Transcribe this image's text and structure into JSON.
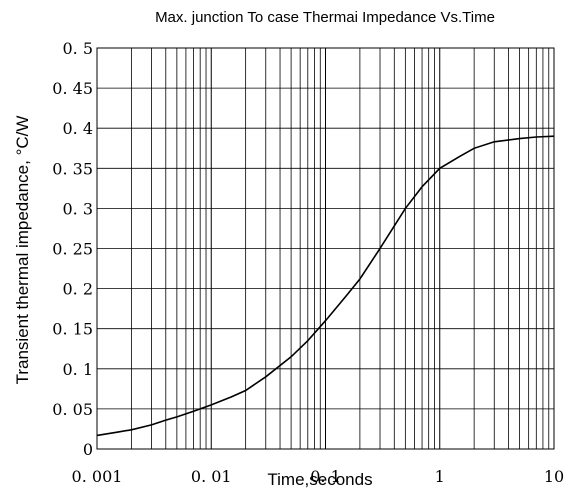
{
  "chart_data": {
    "type": "line",
    "title": "Max. junction To case Thermai Impedance Vs.Time",
    "xlabel": "Time,seconds",
    "ylabel": "Transient thermal impedance, °C/W",
    "x_scale": "log",
    "xlim": [
      0.001,
      10
    ],
    "ylim": [
      0,
      0.5
    ],
    "grid": true,
    "x_ticks": [
      {
        "value": 0.001,
        "label": "0. 001"
      },
      {
        "value": 0.01,
        "label": "0. 01"
      },
      {
        "value": 0.1,
        "label": "0. 1"
      },
      {
        "value": 1,
        "label": "1"
      },
      {
        "value": 10,
        "label": "10"
      }
    ],
    "y_ticks": [
      {
        "value": 0,
        "label": "0"
      },
      {
        "value": 0.05,
        "label": "0. 05"
      },
      {
        "value": 0.1,
        "label": "0. 1"
      },
      {
        "value": 0.15,
        "label": "0. 15"
      },
      {
        "value": 0.2,
        "label": "0. 2"
      },
      {
        "value": 0.25,
        "label": "0. 25"
      },
      {
        "value": 0.3,
        "label": "0. 3"
      },
      {
        "value": 0.35,
        "label": "0. 35"
      },
      {
        "value": 0.4,
        "label": "0. 4"
      },
      {
        "value": 0.45,
        "label": "0. 45"
      },
      {
        "value": 0.5,
        "label": "0. 5"
      }
    ],
    "series": [
      {
        "x": [
          0.001,
          0.0015,
          0.002,
          0.003,
          0.004,
          0.005,
          0.007,
          0.01,
          0.015,
          0.02,
          0.03,
          0.05,
          0.07,
          0.1,
          0.15,
          0.2,
          0.3,
          0.5,
          0.7,
          1,
          1.5,
          2,
          3,
          5,
          7,
          10
        ],
        "y": [
          0.017,
          0.021,
          0.024,
          0.03,
          0.036,
          0.04,
          0.047,
          0.055,
          0.065,
          0.073,
          0.09,
          0.115,
          0.135,
          0.16,
          0.19,
          0.212,
          0.25,
          0.3,
          0.327,
          0.35,
          0.365,
          0.375,
          0.383,
          0.387,
          0.389,
          0.39
        ],
        "color": "#000000"
      }
    ]
  }
}
